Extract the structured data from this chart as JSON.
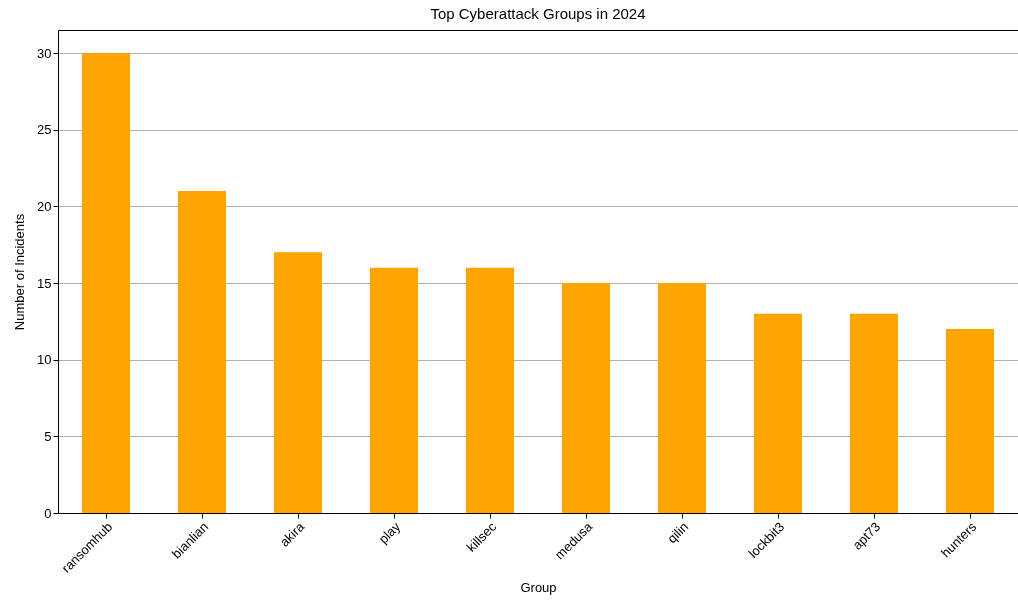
{
  "chart_data": {
    "type": "bar",
    "title": "Top Cyberattack Groups in 2024",
    "xlabel": "Group",
    "ylabel": "Number of Incidents",
    "categories": [
      "ransomhub",
      "bianlian",
      "akira",
      "play",
      "killsec",
      "medusa",
      "qilin",
      "lockbit3",
      "apt73",
      "hunters"
    ],
    "values": [
      30,
      21,
      17,
      16,
      16,
      15,
      15,
      13,
      13,
      12
    ],
    "color": "#ffa500",
    "ylim": [
      0,
      31.5
    ],
    "yticks": [
      0,
      5,
      10,
      15,
      20,
      25,
      30
    ],
    "grid": "y"
  }
}
